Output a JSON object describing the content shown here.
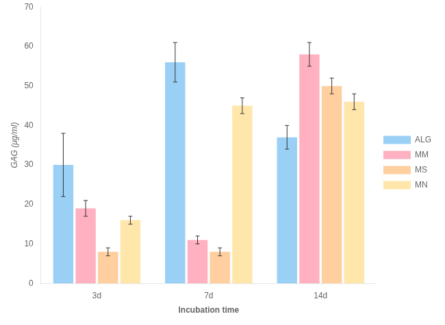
{
  "chart_data": {
    "type": "bar",
    "categories": [
      "3d",
      "7d",
      "14d"
    ],
    "series": [
      {
        "name": "ALG",
        "values": [
          30,
          56,
          37
        ],
        "errors": [
          8,
          5,
          3
        ]
      },
      {
        "name": "MM",
        "values": [
          19,
          11,
          58
        ],
        "errors": [
          2,
          1,
          3
        ]
      },
      {
        "name": "MS",
        "values": [
          8,
          8,
          50
        ],
        "errors": [
          1,
          1,
          2
        ]
      },
      {
        "name": "MN",
        "values": [
          16,
          45,
          46
        ],
        "errors": [
          1,
          2,
          2
        ]
      }
    ],
    "xlabel": "Incubation time",
    "ylabel": "GAG (μg/ml)",
    "ylim": [
      0,
      70
    ],
    "yticks": [
      0,
      10,
      20,
      30,
      40,
      50,
      60,
      70
    ],
    "grid": false,
    "legend": "right"
  }
}
